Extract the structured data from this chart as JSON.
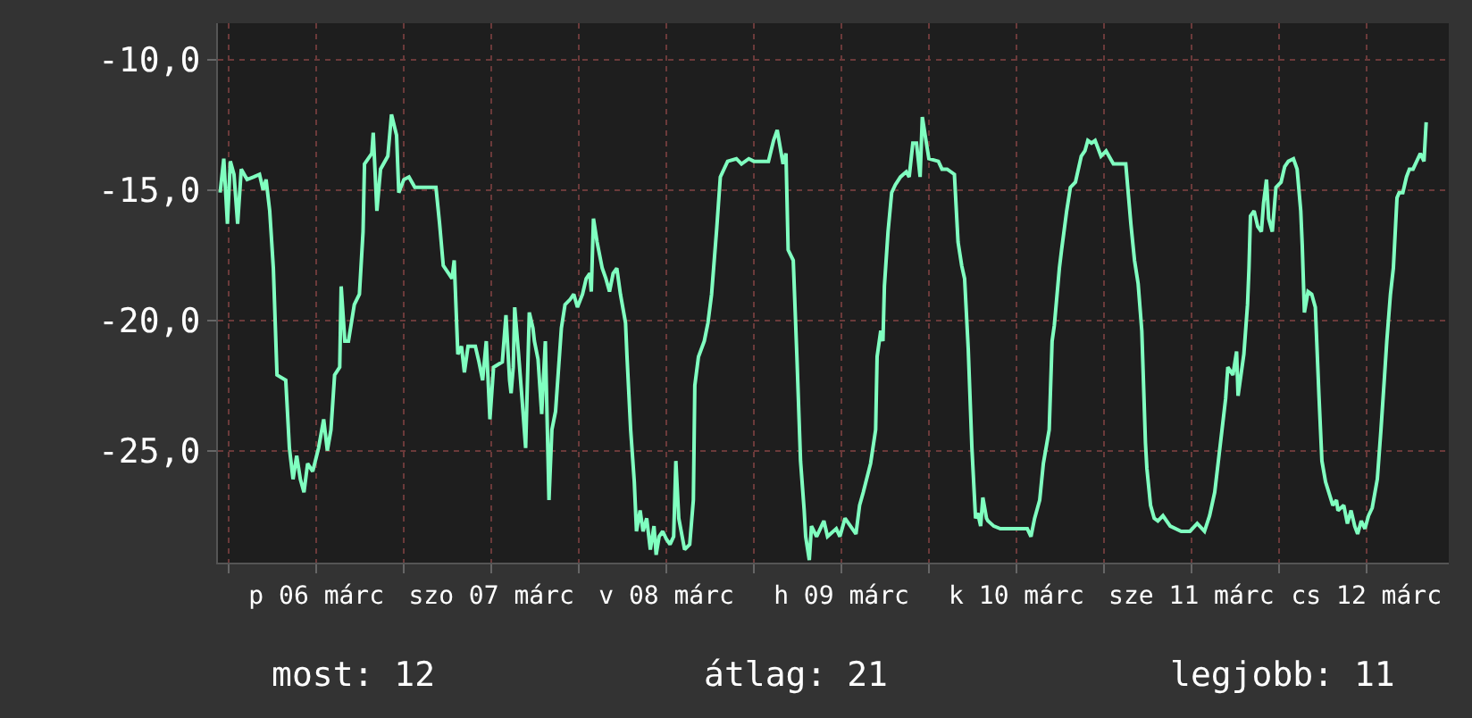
{
  "chart_data": {
    "type": "line",
    "x": [
      "--03-05T22:48",
      "--03-05T23:18",
      "--03-05T23:48",
      "--03-06T00:12",
      "--03-06T00:42",
      "--03-06T01:12",
      "--03-06T01:42",
      "--03-06T02:30",
      "--03-06T03:24",
      "--03-06T04:12",
      "--03-06T04:42",
      "--03-06T05:06",
      "--03-06T05:36",
      "--03-06T06:06",
      "--03-06T06:36",
      "--03-06T07:48",
      "--03-06T08:18",
      "--03-06T08:48",
      "--03-06T09:18",
      "--03-06T09:48",
      "--03-06T10:18",
      "--03-06T10:48",
      "--03-06T11:30",
      "--03-06T12:18",
      "--03-06T13:00",
      "--03-06T13:30",
      "--03-06T14:00",
      "--03-06T14:30",
      "--03-06T15:12",
      "--03-06T15:24",
      "--03-06T15:54",
      "--03-06T16:24",
      "--03-06T17:12",
      "--03-06T17:54",
      "--03-06T18:24",
      "--03-06T18:36",
      "--03-06T19:36",
      "--03-06T19:48",
      "--03-06T20:18",
      "--03-06T20:48",
      "--03-06T21:48",
      "--03-06T22:18",
      "--03-06T23:00",
      "--03-06T23:18",
      "--03-07T00:00",
      "--03-07T00:42",
      "--03-07T01:30",
      "--03-07T04:24",
      "--03-07T04:54",
      "--03-07T05:24",
      "--03-07T06:36",
      "--03-07T06:54",
      "--03-07T07:24",
      "--03-07T07:54",
      "--03-07T08:18",
      "--03-07T08:48",
      "--03-07T09:48",
      "--03-07T10:18",
      "--03-07T10:48",
      "--03-07T11:18",
      "--03-07T11:48",
      "--03-07T12:18",
      "--03-07T13:30",
      "--03-07T14:00",
      "--03-07T14:30",
      "--03-07T14:42",
      "--03-07T15:00",
      "--03-07T15:12",
      "--03-07T15:42",
      "--03-07T16:12",
      "--03-07T16:42",
      "--03-07T17:12",
      "--03-07T17:42",
      "--03-07T17:54",
      "--03-07T18:24",
      "--03-07T18:54",
      "--03-07T19:24",
      "--03-07T19:54",
      "--03-07T20:18",
      "--03-07T20:48",
      "--03-07T21:36",
      "--03-07T22:06",
      "--03-07T22:48",
      "--03-07T23:18",
      "--03-07T23:48",
      "--03-08T00:30",
      "--03-08T01:00",
      "--03-08T01:30",
      "--03-08T01:42",
      "--03-08T02:00",
      "--03-08T02:30",
      "--03-08T03:12",
      "--03-08T03:42",
      "--03-08T04:12",
      "--03-08T04:42",
      "--03-08T05:12",
      "--03-08T05:42",
      "--03-08T06:24",
      "--03-08T06:36",
      "--03-08T07:06",
      "--03-08T07:36",
      "--03-08T07:54",
      "--03-08T08:24",
      "--03-08T08:48",
      "--03-08T09:18",
      "--03-08T09:48",
      "--03-08T10:18",
      "--03-08T10:36",
      "--03-08T11:00",
      "--03-08T11:30",
      "--03-08T12:00",
      "--03-08T12:30",
      "--03-08T13:00",
      "--03-08T13:18",
      "--03-08T13:42",
      "--03-08T14:30",
      "--03-08T15:12",
      "--03-08T15:42",
      "--03-08T15:54",
      "--03-08T16:24",
      "--03-08T17:12",
      "--03-08T17:42",
      "--03-08T18:12",
      "--03-08T18:54",
      "--03-08T19:24",
      "--03-08T20:24",
      "--03-08T21:36",
      "--03-08T22:18",
      "--03-08T23:18",
      "--03-09T00:00",
      "--03-09T02:00",
      "--03-09T02:42",
      "--03-09T03:12",
      "--03-09T04:00",
      "--03-09T04:24",
      "--03-09T04:42",
      "--03-09T05:24",
      "--03-09T05:54",
      "--03-09T06:24",
      "--03-09T06:54",
      "--03-09T07:06",
      "--03-09T07:36",
      "--03-09T07:54",
      "--03-09T08:36",
      "--03-09T09:36",
      "--03-09T10:06",
      "--03-09T11:18",
      "--03-09T11:48",
      "--03-09T12:30",
      "--03-09T14:00",
      "--03-09T14:30",
      "--03-09T15:00",
      "--03-09T16:00",
      "--03-09T16:42",
      "--03-09T16:54",
      "--03-09T17:24",
      "--03-09T17:42",
      "--03-09T17:54",
      "--03-09T18:24",
      "--03-09T18:54",
      "--03-09T19:24",
      "--03-09T20:06",
      "--03-09T20:54",
      "--03-09T21:18",
      "--03-09T21:48",
      "--03-09T22:18",
      "--03-09T22:48",
      "--03-09T23:06",
      "--03-09T23:36",
      "--03-10T00:00",
      "--03-10T01:18",
      "--03-10T01:48",
      "--03-10T02:30",
      "--03-10T03:30",
      "--03-10T04:00",
      "--03-10T04:30",
      "--03-10T04:54",
      "--03-10T05:24",
      "--03-10T05:54",
      "--03-10T06:24",
      "--03-10T06:42",
      "--03-10T07:06",
      "--03-10T07:24",
      "--03-10T07:54",
      "--03-10T08:06",
      "--03-10T08:54",
      "--03-10T09:48",
      "--03-10T11:18",
      "--03-10T13:30",
      "--03-10T14:00",
      "--03-10T14:30",
      "--03-10T15:12",
      "--03-10T15:42",
      "--03-10T16:30",
      "--03-10T16:54",
      "--03-10T17:12",
      "--03-10T17:54",
      "--03-10T18:12",
      "--03-10T18:54",
      "--03-10T19:24",
      "--03-10T20:06",
      "--03-10T20:54",
      "--03-10T21:24",
      "--03-10T21:48",
      "--03-10T22:18",
      "--03-10T22:48",
      "--03-10T23:36",
      "--03-11T00:18",
      "--03-11T01:18",
      "--03-11T03:00",
      "--03-11T03:42",
      "--03-11T04:12",
      "--03-11T04:42",
      "--03-11T05:12",
      "--03-11T05:42",
      "--03-11T05:54",
      "--03-11T06:24",
      "--03-11T06:54",
      "--03-11T07:24",
      "--03-11T08:06",
      "--03-11T09:06",
      "--03-11T10:36",
      "--03-11T11:48",
      "--03-11T12:48",
      "--03-11T13:48",
      "--03-11T14:30",
      "--03-11T15:12",
      "--03-11T15:42",
      "--03-11T16:12",
      "--03-11T16:42",
      "--03-11T17:00",
      "--03-11T17:42",
      "--03-11T18:12",
      "--03-11T18:24",
      "--03-11T19:12",
      "--03-11T19:42",
      "--03-11T19:54",
      "--03-11T20:06",
      "--03-11T20:36",
      "--03-11T21:06",
      "--03-11T21:36",
      "--03-11T21:54",
      "--03-11T22:18",
      "--03-11T22:36",
      "--03-11T23:06",
      "--03-11T23:36",
      "--03-12T00:18",
      "--03-12T00:48",
      "--03-12T01:18",
      "--03-12T02:00",
      "--03-12T02:30",
      "--03-12T03:00",
      "--03-12T03:12",
      "--03-12T03:30",
      "--03-12T04:00",
      "--03-12T04:30",
      "--03-12T05:00",
      "--03-12T05:30",
      "--03-12T05:54",
      "--03-12T06:24",
      "--03-12T07:24",
      "--03-12T07:54",
      "--03-12T08:06",
      "--03-12T08:54",
      "--03-12T09:24",
      "--03-12T09:54",
      "--03-12T10:24",
      "--03-12T10:48",
      "--03-12T11:18",
      "--03-12T11:48",
      "--03-12T12:18",
      "--03-12T12:48",
      "--03-12T13:30",
      "--03-12T14:00",
      "--03-12T14:30",
      "--03-12T14:48",
      "--03-12T15:18",
      "--03-12T15:42",
      "--03-12T16:12",
      "--03-12T16:30",
      "--03-12T17:00",
      "--03-12T17:30",
      "--03-12T17:54",
      "--03-12T18:24",
      "--03-12T18:54",
      "--03-12T19:24",
      "--03-12T19:54",
      "--03-12T20:12"
    ],
    "series": [
      {
        "color": "#80ffc0",
        "values": [
          -15.1,
          -13.8,
          -16.3,
          -13.9,
          -14.4,
          -16.3,
          -14.2,
          -14.6,
          -14.5,
          -14.4,
          -15.0,
          -14.6,
          -15.8,
          -18.0,
          -22.1,
          -22.3,
          -24.9,
          -26.1,
          -25.2,
          -26.1,
          -26.6,
          -25.5,
          -25.8,
          -24.9,
          -23.8,
          -25.0,
          -24.2,
          -22.1,
          -21.8,
          -18.7,
          -20.8,
          -20.8,
          -19.4,
          -19.0,
          -16.6,
          -14.0,
          -13.6,
          -12.8,
          -15.8,
          -14.2,
          -13.7,
          -12.1,
          -12.9,
          -15.1,
          -14.6,
          -14.5,
          -14.9,
          -14.9,
          -16.3,
          -17.9,
          -18.4,
          -17.7,
          -21.3,
          -21.0,
          -22.0,
          -21.0,
          -21.0,
          -21.6,
          -22.3,
          -20.8,
          -23.8,
          -21.8,
          -21.6,
          -19.8,
          -22.3,
          -22.8,
          -21.8,
          -19.5,
          -21.2,
          -23.0,
          -24.9,
          -19.7,
          -20.3,
          -20.8,
          -21.5,
          -23.6,
          -20.8,
          -26.9,
          -24.2,
          -23.5,
          -20.3,
          -19.4,
          -19.2,
          -19.0,
          -19.5,
          -19.0,
          -18.4,
          -18.2,
          -18.9,
          -16.1,
          -17.0,
          -18.0,
          -18.4,
          -18.9,
          -18.2,
          -18.0,
          -19.0,
          -20.1,
          -21.4,
          -24.2,
          -26.2,
          -28.1,
          -27.3,
          -28.1,
          -27.6,
          -28.8,
          -27.9,
          -29.0,
          -28.3,
          -28.1,
          -28.4,
          -28.6,
          -28.3,
          -25.4,
          -27.6,
          -28.8,
          -28.6,
          -26.9,
          -22.5,
          -21.4,
          -20.8,
          -20.1,
          -19.0,
          -16.5,
          -14.5,
          -13.9,
          -13.8,
          -14.0,
          -13.8,
          -13.9,
          -13.9,
          -13.1,
          -12.7,
          -14.0,
          -13.6,
          -17.3,
          -17.7,
          -21.4,
          -25.4,
          -27.3,
          -28.3,
          -29.2,
          -27.9,
          -28.3,
          -27.7,
          -28.3,
          -28.0,
          -28.3,
          -27.6,
          -28.2,
          -27.1,
          -26.6,
          -25.5,
          -24.2,
          -21.4,
          -20.4,
          -20.8,
          -18.7,
          -16.6,
          -15.1,
          -14.8,
          -14.5,
          -14.3,
          -14.5,
          -13.2,
          -13.2,
          -14.5,
          -12.2,
          -13.1,
          -13.8,
          -13.9,
          -14.2,
          -14.2,
          -14.4,
          -17.0,
          -17.9,
          -18.4,
          -21.1,
          -24.9,
          -27.6,
          -27.4,
          -27.9,
          -26.8,
          -27.6,
          -27.7,
          -27.9,
          -28.0,
          -28.0,
          -28.0,
          -28.3,
          -27.6,
          -26.9,
          -25.5,
          -24.2,
          -20.8,
          -20.2,
          -18.0,
          -17.3,
          -15.8,
          -14.9,
          -14.7,
          -13.7,
          -13.5,
          -13.1,
          -13.2,
          -13.1,
          -13.7,
          -13.5,
          -14.0,
          -14.0,
          -16.3,
          -17.7,
          -18.6,
          -20.4,
          -24.7,
          -25.7,
          -27.1,
          -27.6,
          -27.7,
          -27.5,
          -27.9,
          -28.1,
          -28.1,
          -27.8,
          -28.1,
          -27.5,
          -26.6,
          -25.4,
          -24.2,
          -23.0,
          -21.8,
          -22.1,
          -21.2,
          -22.9,
          -21.3,
          -19.4,
          -18.0,
          -16.0,
          -15.8,
          -16.4,
          -16.6,
          -15.5,
          -14.6,
          -16.1,
          -16.6,
          -14.9,
          -14.7,
          -14.1,
          -13.9,
          -13.8,
          -14.2,
          -15.8,
          -17.1,
          -19.7,
          -18.9,
          -19.0,
          -19.5,
          -22.9,
          -25.4,
          -26.2,
          -27.1,
          -26.9,
          -27.3,
          -27.1,
          -27.8,
          -27.3,
          -27.9,
          -28.2,
          -27.7,
          -28.0,
          -27.5,
          -27.2,
          -26.1,
          -24.2,
          -22.1,
          -20.8,
          -19.0,
          -18.0,
          -15.3,
          -15.1,
          -15.1,
          -14.5,
          -14.2,
          -14.2,
          -13.9,
          -13.6,
          -13.9,
          -12.4
        ]
      }
    ],
    "xlim": [
      "--03-05T22:30",
      "--03-12T23:18"
    ],
    "xticks": [
      {
        "value": "--03-06",
        "label": null
      },
      {
        "value": "--03-06T12:00",
        "label": "p 06 márc"
      },
      {
        "value": "--03-07",
        "label": null
      },
      {
        "value": "--03-07T12:00",
        "label": "szo 07 márc"
      },
      {
        "value": "--03-08",
        "label": null
      },
      {
        "value": "--03-08T12:00",
        "label": "v 08 márc"
      },
      {
        "value": "--03-09",
        "label": null
      },
      {
        "value": "--03-09T12:00",
        "label": "h 09 márc"
      },
      {
        "value": "--03-10",
        "label": null
      },
      {
        "value": "--03-10T12:00",
        "label": "k 10 márc"
      },
      {
        "value": "--03-11",
        "label": null
      },
      {
        "value": "--03-11T12:00",
        "label": "sze 11 márc"
      },
      {
        "value": "--03-12",
        "label": null
      },
      {
        "value": "--03-12T12:00",
        "label": "cs 12 márc"
      }
    ],
    "ylim": [
      -29.3,
      -8.6
    ],
    "yticks": [
      {
        "value": -10,
        "label": "-10,0"
      },
      {
        "value": -15,
        "label": "-15,0"
      },
      {
        "value": -20,
        "label": "-20,0"
      },
      {
        "value": -25,
        "label": "-25,0"
      }
    ],
    "grid": true,
    "line_style": "solid",
    "annotations": [
      "most: 12",
      "átlag: 21",
      "legjobb: 11"
    ]
  }
}
